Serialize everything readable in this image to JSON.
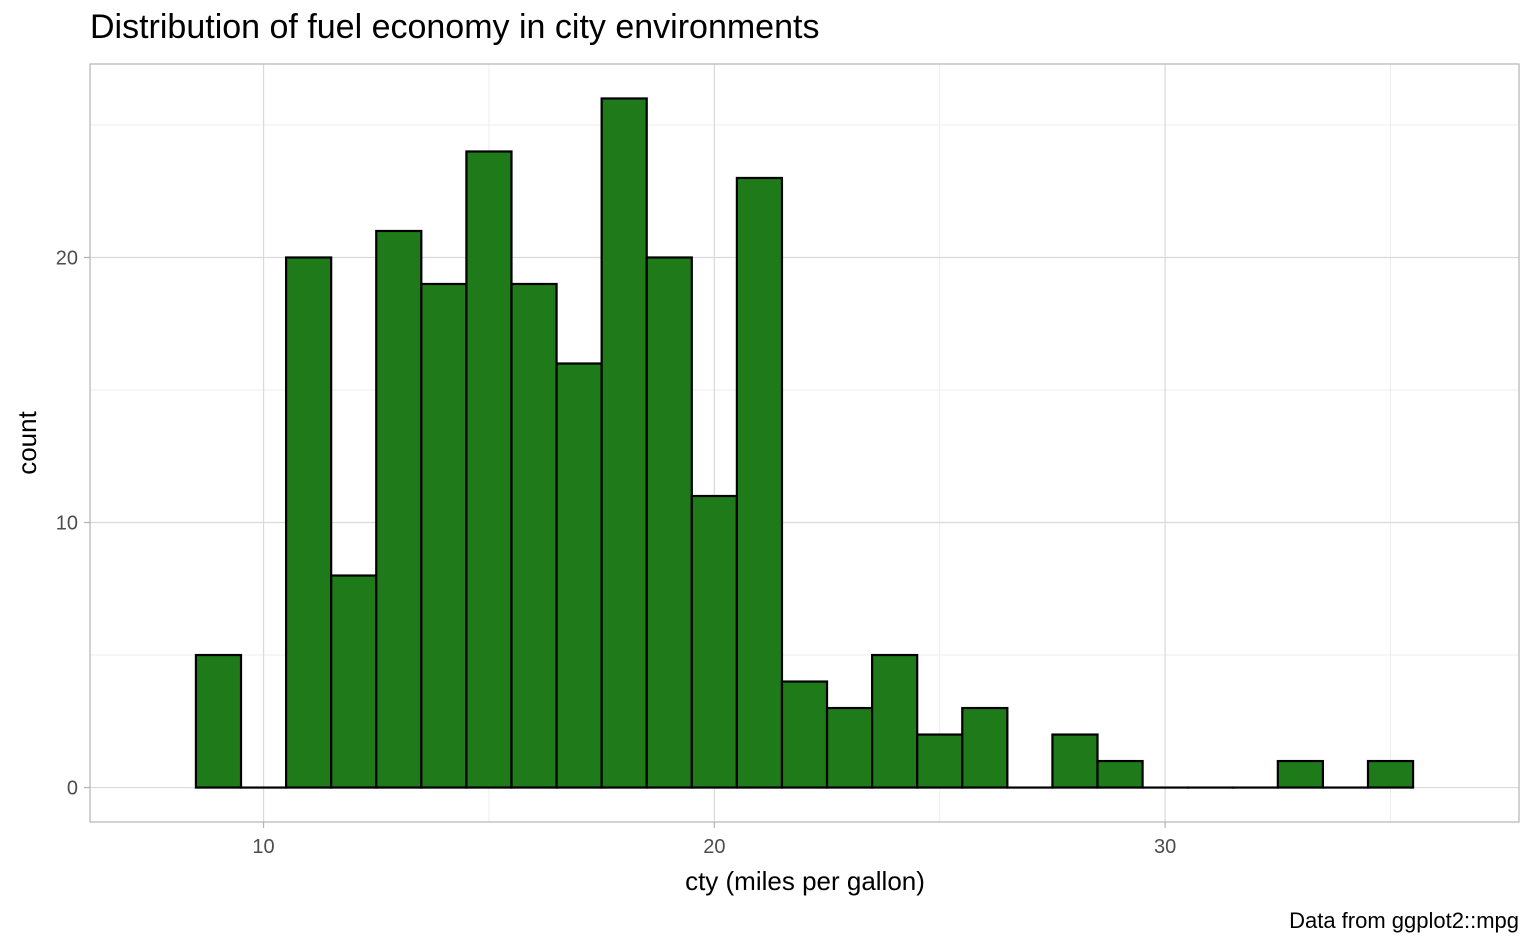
{
  "chart_data": {
    "type": "bar",
    "subtype": "histogram",
    "title": "Distribution of fuel economy in city environments",
    "xlabel": "cty (miles per gallon)",
    "ylabel": "count",
    "caption": "Data from ggplot2::mpg",
    "bin_width": 1,
    "x": [
      9,
      10,
      11,
      12,
      13,
      14,
      15,
      16,
      17,
      18,
      19,
      20,
      21,
      22,
      23,
      24,
      25,
      26,
      27,
      28,
      29,
      30,
      31,
      32,
      33,
      34,
      35
    ],
    "values": [
      5,
      0,
      20,
      8,
      21,
      19,
      24,
      19,
      16,
      26,
      20,
      11,
      23,
      4,
      3,
      5,
      2,
      3,
      0,
      2,
      1,
      0,
      0,
      0,
      1,
      0,
      1
    ],
    "xlim": [
      6.15,
      37.85
    ],
    "ylim": [
      -1.3,
      27.3
    ],
    "x_ticks": [
      10,
      20,
      30
    ],
    "x_tick_labels": [
      "10",
      "20",
      "30"
    ],
    "y_ticks": [
      0,
      10,
      20
    ],
    "y_tick_labels": [
      "0",
      "10",
      "20"
    ],
    "grid": true,
    "colors": {
      "fill": "#1f7a1a",
      "stroke": "#000000",
      "grid_major": "#d9d9d9",
      "grid_minor": "#ededed",
      "panel_border": "#b3b3b3"
    }
  }
}
